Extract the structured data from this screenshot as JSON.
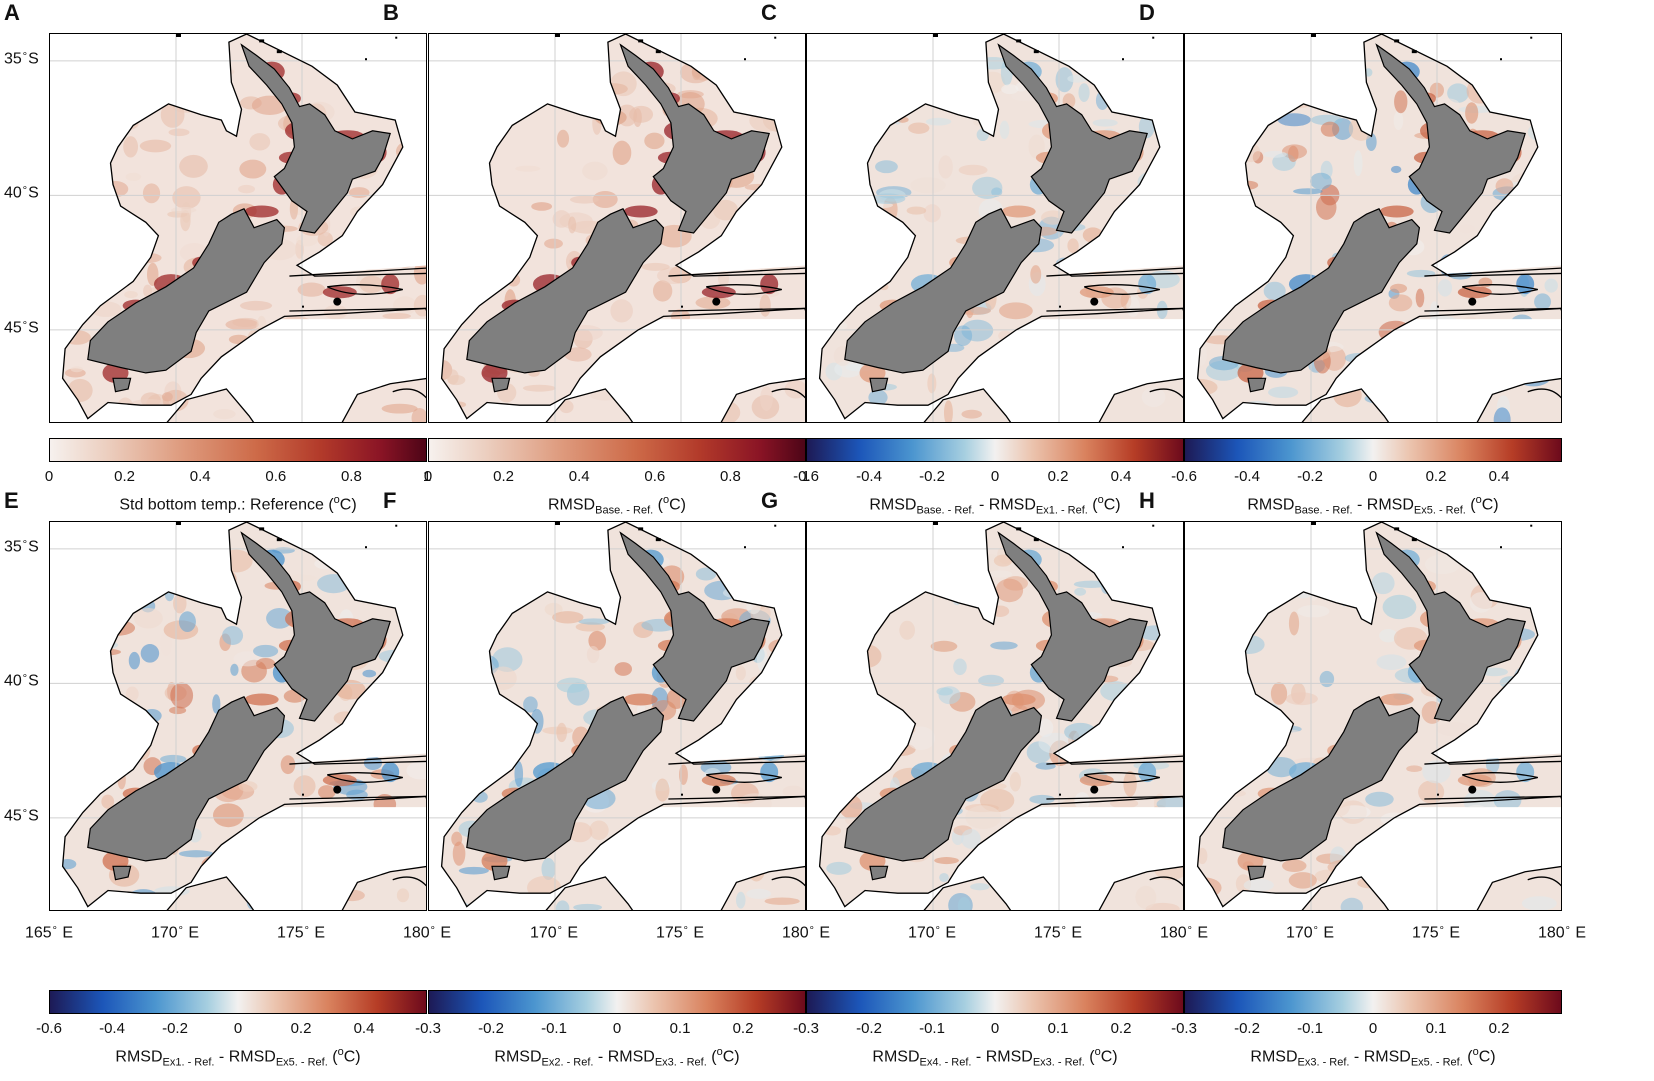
{
  "chart_data": [
    {
      "type": "heatmap",
      "panel": "A",
      "colormap": "sequential",
      "colorbar": {
        "ticks": [
          "0",
          "0.2",
          "0.4",
          "0.6",
          "0.8",
          "1"
        ],
        "range": [
          0,
          1
        ]
      },
      "label": {
        "base": "Std bottom temp.: Reference (",
        "sup": "o",
        "tail": "C)"
      },
      "intensity": 0.75
    },
    {
      "type": "heatmap",
      "panel": "B",
      "colormap": "sequential",
      "colorbar": {
        "ticks": [
          "0",
          "0.2",
          "0.4",
          "0.6",
          "0.8",
          "1"
        ],
        "range": [
          0,
          1
        ]
      },
      "label": {
        "t1": "RMSD",
        "s1": "Base. - Ref.",
        "t2": "",
        "s2": "",
        "tail": " (",
        "sup": "o",
        "end": "C)"
      },
      "intensity": 0.8
    },
    {
      "type": "heatmap",
      "panel": "C",
      "colormap": "diverging",
      "colorbar": {
        "ticks": [
          "-0.6",
          "-0.4",
          "-0.2",
          "0",
          "0.2",
          "0.4"
        ],
        "range": [
          -0.6,
          0.6
        ]
      },
      "label": {
        "t1": "RMSD",
        "s1": "Base. - Ref.",
        "t2": " - RMSD",
        "s2": "Ex1. - Ref.",
        "tail": " (",
        "sup": "o",
        "end": "C)"
      },
      "intensity": 0.45
    },
    {
      "type": "heatmap",
      "panel": "D",
      "colormap": "diverging",
      "colorbar": {
        "ticks": [
          "-0.6",
          "-0.4",
          "-0.2",
          "0",
          "0.2",
          "0.4"
        ],
        "range": [
          -0.6,
          0.6
        ]
      },
      "label": {
        "t1": "RMSD",
        "s1": "Base. - Ref.",
        "t2": " - RMSD",
        "s2": "Ex5. - Ref.",
        "tail": " (",
        "sup": "o",
        "end": "C)"
      },
      "intensity": 0.7
    },
    {
      "type": "heatmap",
      "panel": "E",
      "colormap": "diverging",
      "colorbar": {
        "ticks": [
          "-0.6",
          "-0.4",
          "-0.2",
          "0",
          "0.2",
          "0.4"
        ],
        "range": [
          -0.6,
          0.6
        ]
      },
      "label": {
        "t1": "RMSD",
        "s1": "Ex1. - Ref.",
        "t2": " - RMSD",
        "s2": "Ex5. - Ref.",
        "tail": " (",
        "sup": "o",
        "end": "C)"
      },
      "intensity": 0.65
    },
    {
      "type": "heatmap",
      "panel": "F",
      "colormap": "diverging",
      "colorbar": {
        "ticks": [
          "-0.3",
          "-0.2",
          "-0.1",
          "0",
          "0.1",
          "0.2"
        ],
        "range": [
          -0.3,
          0.3
        ]
      },
      "label": {
        "t1": "RMSD",
        "s1": "Ex2. - Ref.",
        "t2": " - RMSD",
        "s2": "Ex3. - Ref.",
        "tail": " (",
        "sup": "o",
        "end": "C)"
      },
      "intensity": 0.6
    },
    {
      "type": "heatmap",
      "panel": "G",
      "colormap": "diverging",
      "colorbar": {
        "ticks": [
          "-0.3",
          "-0.2",
          "-0.1",
          "0",
          "0.1",
          "0.2"
        ],
        "range": [
          -0.3,
          0.3
        ]
      },
      "label": {
        "t1": "RMSD",
        "s1": "Ex4. - Ref.",
        "t2": " - RMSD",
        "s2": "Ex3. - Ref.",
        "tail": " (",
        "sup": "o",
        "end": "C)"
      },
      "intensity": 0.5
    },
    {
      "type": "heatmap",
      "panel": "H",
      "colormap": "diverging",
      "colorbar": {
        "ticks": [
          "-0.3",
          "-0.2",
          "-0.1",
          "0",
          "0.1",
          "0.2"
        ],
        "range": [
          -0.3,
          0.3
        ]
      },
      "label": {
        "t1": "RMSD",
        "s1": "Ex3. - Ref.",
        "t2": " - RMSD",
        "s2": "Ex5. - Ref.",
        "tail": " (",
        "sup": "o",
        "end": "C)"
      },
      "intensity": 0.45
    }
  ],
  "axes": {
    "lat_ticks": [
      {
        "num": "35",
        "hemi": "S"
      },
      {
        "num": "40",
        "hemi": "S"
      },
      {
        "num": "45",
        "hemi": "S"
      }
    ],
    "lon_ticks": [
      {
        "num": "165",
        "hemi": "E"
      },
      {
        "num": "170",
        "hemi": "E"
      },
      {
        "num": "175",
        "hemi": "E"
      },
      {
        "num": "180",
        "hemi": "E"
      }
    ],
    "degree_symbol": "∘"
  },
  "colors": {
    "land": "#7f7f7f",
    "ocean": "#ffffff",
    "contour": "#000000"
  }
}
